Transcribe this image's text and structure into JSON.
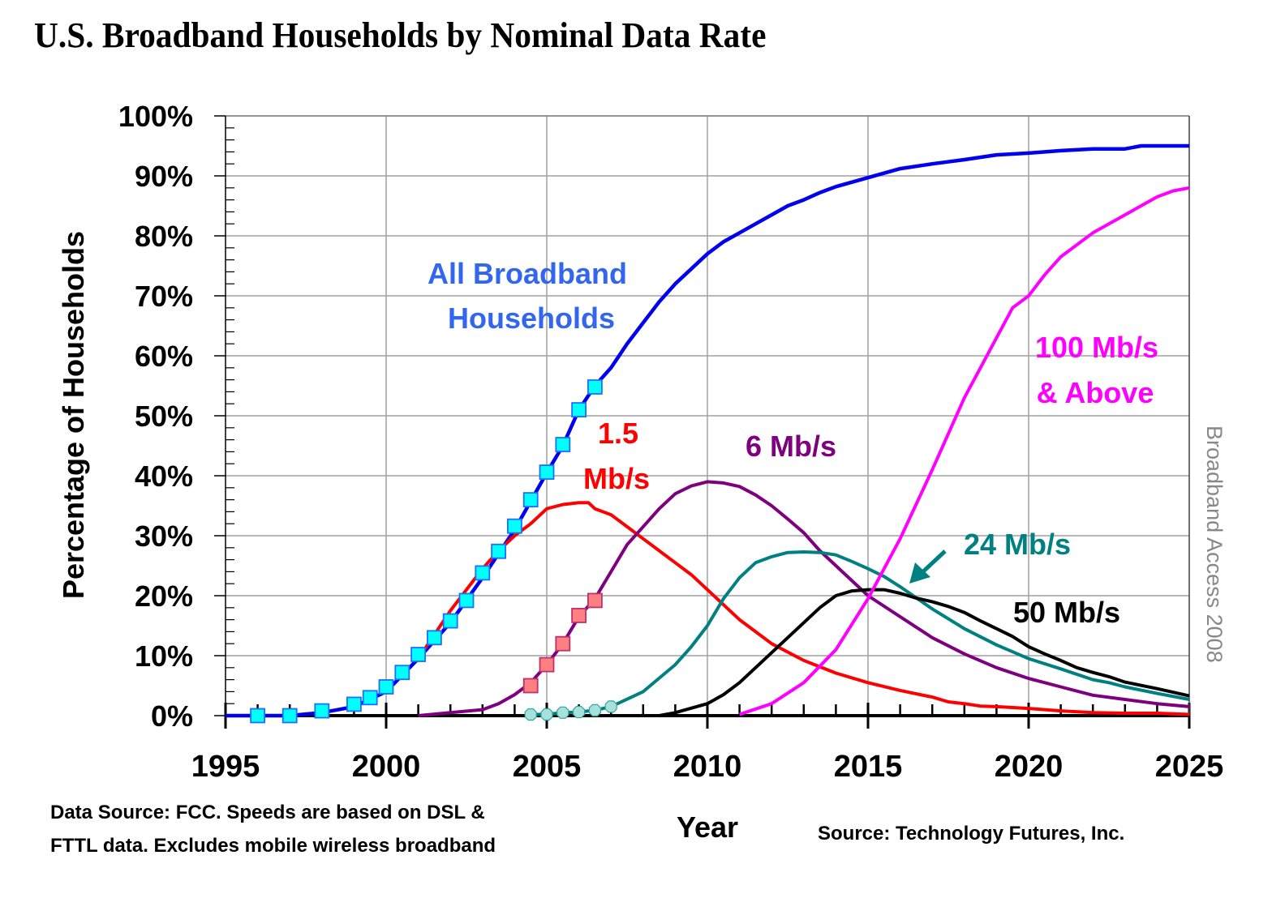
{
  "title": "U.S. Broadband Households by Nominal Data Rate",
  "chart_data": {
    "type": "line",
    "title": "U.S. Broadband Households by Nominal Data Rate",
    "xlabel": "Year",
    "ylabel": "Percentage of Households",
    "xlim": [
      1995,
      2025
    ],
    "ylim": [
      0,
      100
    ],
    "x_ticks": [
      "1995",
      "2000",
      "2005",
      "2010",
      "2015",
      "2020",
      "2025"
    ],
    "y_ticks": [
      "0%",
      "10%",
      "20%",
      "30%",
      "40%",
      "50%",
      "60%",
      "70%",
      "80%",
      "90%",
      "100%"
    ],
    "grid": true,
    "series": [
      {
        "name": "All Broadband Households",
        "color": "#0000ee",
        "label_color": "#3366ee",
        "x": [
          1995,
          1996,
          1997,
          1998,
          1999,
          2000,
          2001,
          2002,
          2003,
          2004,
          2005,
          2005.5,
          2006,
          2006.5,
          2007,
          2007.5,
          2008,
          2008.5,
          2009,
          2009.5,
          2010,
          2010.5,
          2011,
          2011.5,
          2012,
          2012.5,
          2013,
          2013.5,
          2014,
          2015,
          2016,
          2017,
          2018,
          2019,
          2020,
          2021,
          2022,
          2023,
          2023.5,
          2024,
          2025
        ],
        "y": [
          0,
          0,
          0,
          0.5,
          1.5,
          4,
          9.5,
          15.5,
          23,
          31,
          40.5,
          45,
          51,
          55,
          58,
          62,
          65.5,
          69,
          72,
          74.5,
          77,
          79,
          80.5,
          82,
          83.5,
          85,
          86,
          87.2,
          88.2,
          89.7,
          91.2,
          92,
          92.7,
          93.5,
          93.8,
          94.2,
          94.5,
          94.5,
          95,
          95,
          95
        ]
      },
      {
        "name": "1.5 Mb/s",
        "color": "#ff0000",
        "x": [
          1995,
          2001,
          2001.5,
          2002,
          2002.5,
          2003,
          2003.5,
          2004,
          2004.5,
          2005,
          2005.5,
          2006,
          2006.3,
          2006.5,
          2007,
          2007.5,
          2008,
          2008.5,
          2009,
          2009.5,
          2010,
          2010.5,
          2011,
          2011.5,
          2012,
          2013,
          2014,
          2015,
          2016,
          2017,
          2017.5,
          2018,
          2018.5,
          2019,
          2020,
          2021,
          2022,
          2023,
          2024,
          2025
        ],
        "y": [
          null,
          9.5,
          13.5,
          17.5,
          21,
          24.5,
          27.5,
          30,
          32,
          34.5,
          35.2,
          35.5,
          35.5,
          34.5,
          33.5,
          31.5,
          29.5,
          27.5,
          25.5,
          23.5,
          21,
          18.5,
          16,
          14,
          12,
          9.2,
          7.1,
          5.5,
          4.2,
          3.1,
          2.3,
          2,
          1.6,
          1.5,
          1.2,
          0.8,
          0.5,
          0.4,
          0.4,
          0.2
        ]
      },
      {
        "name": "6 Mb/s",
        "color": "#7f007f",
        "x": [
          2001,
          2002,
          2003,
          2003.5,
          2004,
          2004.5,
          2005,
          2005.5,
          2006,
          2006.5,
          2007,
          2007.5,
          2008,
          2008.5,
          2009,
          2009.5,
          2010,
          2010.5,
          2011,
          2011.5,
          2012,
          2012.5,
          2013,
          2013.5,
          2014,
          2014.5,
          2015,
          2016,
          2017,
          2018,
          2019,
          2020,
          2021,
          2022,
          2023,
          2024,
          2025
        ],
        "y": [
          0,
          0.5,
          1,
          2,
          3.5,
          5.5,
          8.5,
          12,
          16.5,
          19.5,
          24,
          28.5,
          31.5,
          34.5,
          37,
          38.3,
          39,
          38.8,
          38.2,
          36.8,
          35,
          32.8,
          30.5,
          27.5,
          25,
          22.5,
          20,
          16.5,
          13,
          10.3,
          8,
          6.2,
          4.8,
          3.4,
          2.7,
          2,
          1.5
        ]
      },
      {
        "name": "24 Mb/s",
        "color": "#008080",
        "marker_x": [
          2004.5,
          2005,
          2005.5,
          2006,
          2006.5,
          2007
        ],
        "marker_y": [
          0.2,
          0.2,
          0.5,
          0.6,
          0.9,
          1.5
        ],
        "x": [
          2004.5,
          2005,
          2005.5,
          2006,
          2006.5,
          2007,
          2008,
          2009,
          2009.5,
          2010,
          2010.5,
          2011,
          2011.5,
          2012,
          2012.5,
          2013,
          2013.5,
          2014,
          2014.5,
          2015,
          2015.5,
          2016,
          2017,
          2018,
          2019,
          2020,
          2021,
          2022,
          2022.5,
          2023,
          2024,
          2025
        ],
        "y": [
          0.2,
          0.2,
          0.5,
          0.6,
          0.9,
          1.5,
          4,
          8.5,
          11.5,
          15,
          19.5,
          23,
          25.5,
          26.5,
          27.2,
          27.3,
          27.2,
          26.8,
          25.7,
          24.5,
          23.2,
          21.5,
          17.8,
          14.5,
          11.8,
          9.5,
          7.8,
          6,
          5.5,
          4.8,
          3.7,
          2.7
        ]
      },
      {
        "name": "50 Mb/s",
        "color": "#000000",
        "x": [
          2008.5,
          2009,
          2010,
          2010.5,
          2011,
          2011.5,
          2012,
          2012.5,
          2013,
          2013.5,
          2014,
          2014.5,
          2015,
          2015.5,
          2016,
          2016.5,
          2017,
          2017.5,
          2018,
          2018.5,
          2019,
          2019.5,
          2020,
          2020.5,
          2021,
          2021.5,
          2022,
          2022.5,
          2023,
          2024,
          2025
        ],
        "y": [
          0,
          0.5,
          2,
          3.5,
          5.5,
          8,
          10.5,
          13,
          15.5,
          18,
          20,
          20.8,
          21,
          21,
          20.4,
          19.6,
          19,
          18.2,
          17.2,
          15.8,
          14.5,
          13.2,
          11.5,
          10.3,
          9.2,
          8,
          7.2,
          6.5,
          5.6,
          4.5,
          3.3
        ]
      },
      {
        "name": "100 Mb/s & Above",
        "color": "#ff00ff",
        "x": [
          2011,
          2012,
          2013,
          2014,
          2015,
          2016,
          2017,
          2018,
          2019,
          2019.5,
          2020,
          2020.5,
          2021,
          2022,
          2023,
          2024,
          2024.5,
          2025
        ],
        "y": [
          0.2,
          2,
          5.5,
          11,
          19.5,
          29.5,
          41,
          53,
          63,
          68,
          70,
          73.5,
          76.5,
          80.5,
          83.5,
          86.5,
          87.5,
          88
        ]
      }
    ],
    "markers": {
      "all_broadband": {
        "shape": "square",
        "fill": "#00ffff",
        "stroke": "#1e6fff",
        "x": [
          1996,
          1997,
          1998,
          1999,
          1999.5,
          2000,
          2000.5,
          2001,
          2001.5,
          2002,
          2002.5,
          2003,
          2003.5,
          2004,
          2004.5,
          2005,
          2005.5,
          2006,
          2006.5
        ],
        "y": [
          0,
          0,
          0.8,
          1.9,
          3,
          4.8,
          7.2,
          10.2,
          13,
          15.8,
          19.2,
          23.8,
          27.4,
          31.6,
          36,
          40.6,
          45.2,
          51,
          54.8
        ]
      },
      "six_mbps": {
        "shape": "square",
        "fill": "#ff8080",
        "stroke": "#c0306a",
        "x": [
          2004.5,
          2005,
          2005.5,
          2006,
          2006.5
        ],
        "y": [
          5,
          8.5,
          12,
          16.7,
          19.2
        ]
      },
      "twentyfour_mbps": {
        "shape": "octagon",
        "fill": "#a8e0dc",
        "stroke": "#30a8a0",
        "x": [
          2004.5,
          2005,
          2005.5,
          2006,
          2006.5,
          2007
        ],
        "y": [
          0.2,
          0.2,
          0.5,
          0.6,
          0.9,
          1.5
        ]
      }
    },
    "annotations": [
      {
        "text_lines": [
          "All Broadband",
          "Households"
        ],
        "color": "#3366ee"
      },
      {
        "text_lines": [
          "1.5",
          "Mb/s"
        ],
        "color": "#ff0000"
      },
      {
        "text_lines": [
          "6 Mb/s"
        ],
        "color": "#7f007f"
      },
      {
        "text_lines": [
          "24 Mb/s"
        ],
        "color": "#008080",
        "arrow": true
      },
      {
        "text_lines": [
          "50 Mb/s"
        ],
        "color": "#000000"
      },
      {
        "text_lines": [
          "100 Mb/s",
          "& Above"
        ],
        "color": "#ff00ff"
      }
    ],
    "legend": "none (direct labels)"
  },
  "notes": {
    "data_source_line1": "Data Source: FCC.  Speeds are based on DSL &",
    "data_source_line2": "FTTL data.  Excludes mobile wireless broadband",
    "source": "Source: Technology Futures, Inc.",
    "watermark": "Broadband Access  2008"
  }
}
